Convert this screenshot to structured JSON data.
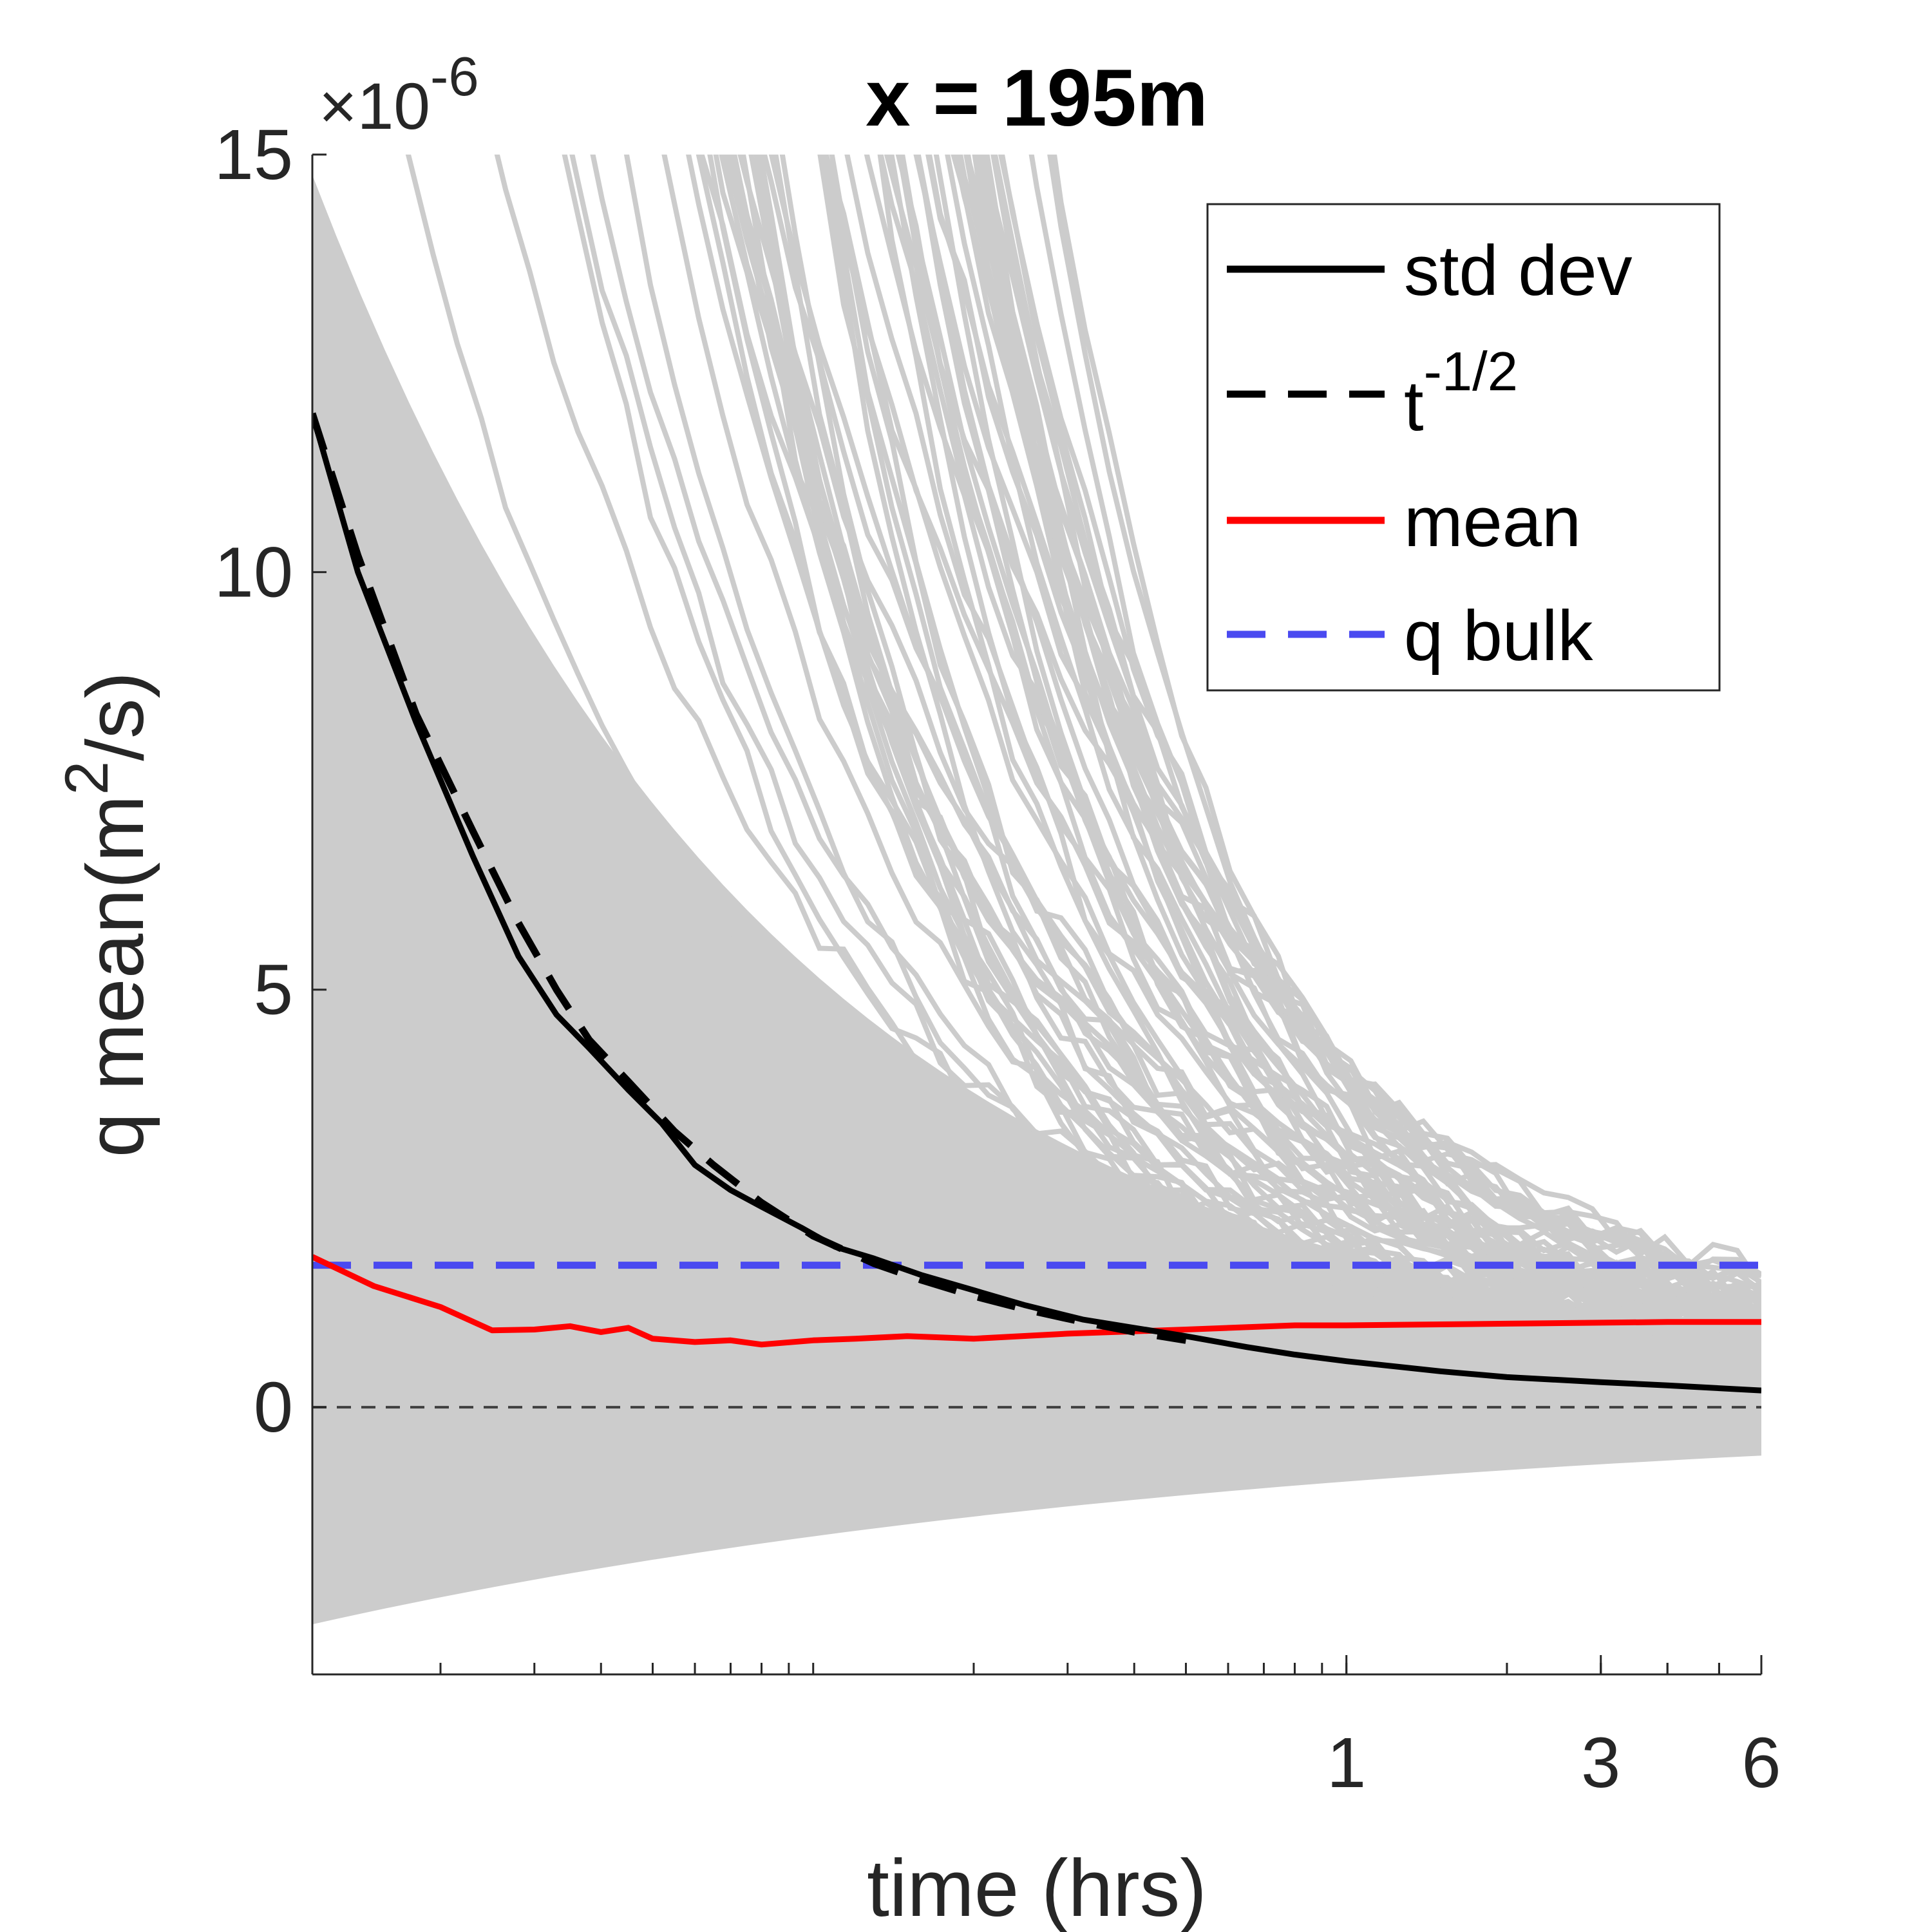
{
  "chart_data": {
    "type": "line",
    "title": "x = 195m",
    "xlabel": "time (hrs)",
    "ylabel_main": "q mean(m",
    "ylabel_sup": "2",
    "ylabel_end": "/s)",
    "y_exponent_base": "×10",
    "y_exponent_power": "-6",
    "x_scale": "log",
    "xlim": [
      0.0115,
      6
    ],
    "ylim": [
      -3.2,
      15
    ],
    "x_ticks": [
      1,
      3,
      6
    ],
    "x_tick_labels": [
      "1",
      "3",
      "6"
    ],
    "y_ticks": [
      0,
      5,
      10,
      15
    ],
    "y_tick_labels": [
      "0",
      "5",
      "10",
      "15"
    ],
    "legend_position": "top-right",
    "legend": [
      {
        "label": "std dev",
        "sup": "",
        "color": "#000000",
        "style": "solid"
      },
      {
        "label": "t",
        "sup": "-1/2",
        "color": "#000000",
        "style": "dashed"
      },
      {
        "label": "mean",
        "sup": "",
        "color": "#ff0000",
        "style": "solid"
      },
      {
        "label": "q bulk",
        "sup": "",
        "color": "#4a4af0",
        "style": "dashed"
      }
    ],
    "series": [
      {
        "name": "std dev",
        "color": "#000000",
        "style": "solid",
        "x": [
          0.0115,
          0.014,
          0.018,
          0.023,
          0.028,
          0.033,
          0.038,
          0.045,
          0.052,
          0.06,
          0.07,
          0.08,
          0.095,
          0.11,
          0.13,
          0.16,
          0.2,
          0.25,
          0.32,
          0.4,
          0.5,
          0.65,
          0.8,
          1.0,
          1.5,
          2.0,
          3.0,
          4.0,
          6.0
        ],
        "y": [
          11.9,
          10.0,
          8.2,
          6.6,
          5.4,
          4.7,
          4.3,
          3.8,
          3.4,
          2.9,
          2.6,
          2.4,
          2.15,
          1.92,
          1.78,
          1.58,
          1.4,
          1.22,
          1.05,
          0.95,
          0.85,
          0.72,
          0.63,
          0.55,
          0.43,
          0.36,
          0.3,
          0.26,
          0.2
        ]
      },
      {
        "name": "t^-1/2",
        "color": "#000000",
        "style": "dashed",
        "x": [
          0.0115,
          0.014,
          0.018,
          0.023,
          0.028,
          0.033,
          0.038,
          0.045,
          0.055,
          0.065,
          0.08,
          0.1,
          0.13,
          0.16,
          0.2,
          0.25,
          0.32,
          0.4,
          0.5
        ],
        "y": [
          11.9,
          10.2,
          8.3,
          6.9,
          5.8,
          5.0,
          4.4,
          3.9,
          3.3,
          2.9,
          2.45,
          2.05,
          1.72,
          1.52,
          1.33,
          1.17,
          1.02,
          0.9,
          0.8
        ]
      },
      {
        "name": "mean",
        "color": "#ff0000",
        "style": "solid",
        "x": [
          0.0115,
          0.015,
          0.02,
          0.025,
          0.03,
          0.035,
          0.04,
          0.045,
          0.05,
          0.06,
          0.07,
          0.08,
          0.1,
          0.12,
          0.15,
          0.2,
          0.3,
          0.5,
          0.8,
          1.0,
          2.0,
          4.0,
          6.0
        ],
        "y": [
          1.8,
          1.45,
          1.2,
          0.92,
          0.93,
          0.97,
          0.9,
          0.95,
          0.82,
          0.78,
          0.8,
          0.75,
          0.8,
          0.82,
          0.85,
          0.82,
          0.88,
          0.93,
          0.98,
          0.98,
          1.0,
          1.02,
          1.02
        ]
      },
      {
        "name": "q bulk",
        "color": "#4a4af0",
        "style": "dashed",
        "x": [
          0.0115,
          6.0
        ],
        "y": [
          1.7,
          1.7
        ]
      },
      {
        "name": "zero",
        "color": "#404040",
        "style": "dashed",
        "x": [
          0.0115,
          6.0
        ],
        "y": [
          0,
          0
        ]
      }
    ],
    "realizations_color": "#cccccc"
  }
}
